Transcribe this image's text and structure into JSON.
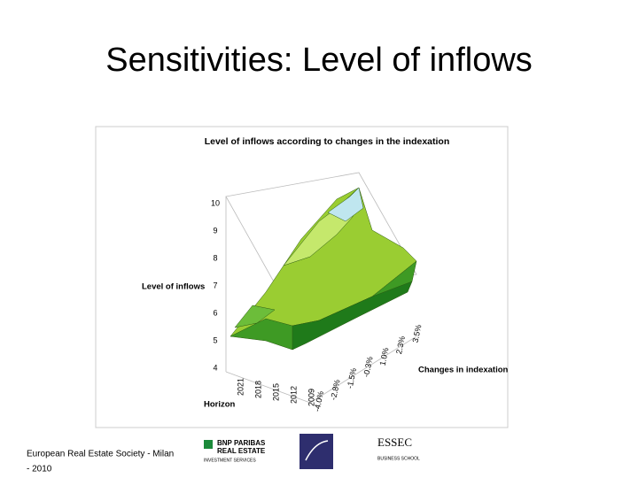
{
  "slide_title": "Sensitivities: Level of inflows",
  "chart": {
    "title": "Level of inflows according to changes in the indexation",
    "z_label": "Level of inflows",
    "zticks": [
      10,
      9,
      8,
      7,
      6,
      5,
      4
    ],
    "x_label": "Horizon",
    "xticks": [
      "2021",
      "2018",
      "2015",
      "2012",
      "2009"
    ],
    "y_label": "Changes in indexation",
    "yticks": [
      "-4.0%",
      "-2.8%",
      "-1.5%",
      "-0.3%",
      "1.0%",
      "2.3%",
      "3.5%"
    ]
  },
  "footer": {
    "text": [
      "European Real Estate Society - Milan",
      "- 2010"
    ],
    "logo1": [
      "BNP PARIBAS",
      "REAL ESTATE",
      "INVESTMENT SERVICES"
    ],
    "logo3": [
      "ESSEC",
      "BUSINESS SCHOOL"
    ]
  }
}
